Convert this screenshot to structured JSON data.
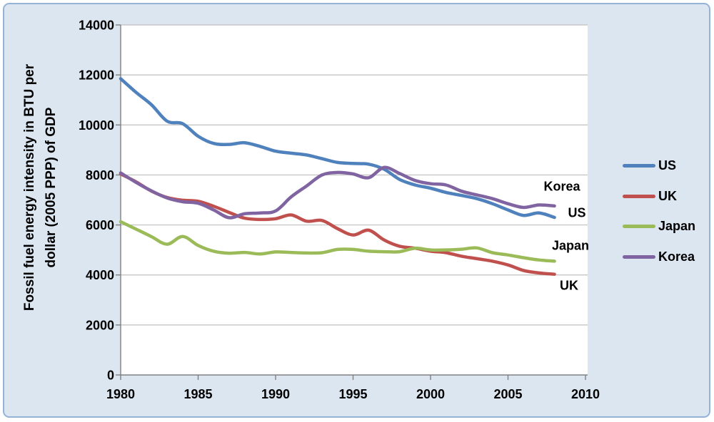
{
  "window": {
    "background_color": "#DCE6F1",
    "border_color": "#95B3D7",
    "plot_background": "#FFFFFF"
  },
  "y_axis": {
    "title_line1": "Fossil fuel energy intensity in BTU per",
    "title_line2": "dollar (2005 PPP) of GDP"
  },
  "inline_labels": {
    "korea": "Korea",
    "us": "US",
    "japan": "Japan",
    "uk": "UK"
  },
  "legend": {
    "position": "right-outside",
    "items": [
      {
        "label": "US",
        "color": "#4F81BD"
      },
      {
        "label": "UK",
        "color": "#C0504D"
      },
      {
        "label": "Japan",
        "color": "#9BBB59"
      },
      {
        "label": "Korea",
        "color": "#8064A2"
      }
    ]
  },
  "chart_data": {
    "type": "line",
    "title": "",
    "xlabel": "",
    "ylabel": "Fossil fuel energy intensity in BTU per dollar (2005 PPP) of GDP",
    "xlim": [
      1980,
      2010
    ],
    "ylim": [
      0,
      14000
    ],
    "x_ticks": [
      1980,
      1985,
      1990,
      1995,
      2000,
      2005,
      2010
    ],
    "y_ticks": [
      0,
      2000,
      4000,
      6000,
      8000,
      10000,
      12000,
      14000
    ],
    "grid": "horizontal-only",
    "gridline_color": "#BFBFBF",
    "axis_color": "#808080",
    "tick_label_color": "#000000",
    "smooth_lines": true,
    "line_width": 4.5,
    "legend_position": "right-outside",
    "x": [
      1980,
      1981,
      1982,
      1983,
      1984,
      1985,
      1986,
      1987,
      1988,
      1989,
      1990,
      1991,
      1992,
      1993,
      1994,
      1995,
      1996,
      1997,
      1998,
      1999,
      2000,
      2001,
      2002,
      2003,
      2004,
      2005,
      2006,
      2007,
      2008
    ],
    "series": [
      {
        "name": "US",
        "color": "#4F81BD",
        "values": [
          11850,
          11300,
          10800,
          10150,
          10050,
          9550,
          9260,
          9220,
          9290,
          9140,
          8950,
          8870,
          8800,
          8650,
          8500,
          8460,
          8430,
          8230,
          7820,
          7600,
          7470,
          7300,
          7180,
          7050,
          6850,
          6600,
          6380,
          6480,
          6300
        ]
      },
      {
        "name": "UK",
        "color": "#C0504D",
        "values": [
          8040,
          7720,
          7350,
          7100,
          6990,
          6950,
          6750,
          6500,
          6270,
          6220,
          6250,
          6400,
          6150,
          6180,
          5850,
          5600,
          5790,
          5400,
          5150,
          5070,
          4950,
          4890,
          4750,
          4650,
          4550,
          4400,
          4180,
          4080,
          4030
        ]
      },
      {
        "name": "Japan",
        "color": "#9BBB59",
        "values": [
          6130,
          5830,
          5530,
          5230,
          5540,
          5180,
          4950,
          4870,
          4900,
          4840,
          4920,
          4900,
          4880,
          4890,
          5020,
          5020,
          4950,
          4930,
          4930,
          5070,
          5000,
          5000,
          5030,
          5080,
          4890,
          4800,
          4690,
          4600,
          4550
        ]
      },
      {
        "name": "Korea",
        "color": "#8064A2",
        "values": [
          8080,
          7700,
          7360,
          7080,
          6930,
          6870,
          6600,
          6290,
          6450,
          6480,
          6560,
          7120,
          7560,
          8000,
          8100,
          8040,
          7890,
          8300,
          8060,
          7780,
          7650,
          7600,
          7350,
          7200,
          7050,
          6850,
          6700,
          6800,
          6760
        ]
      }
    ]
  }
}
